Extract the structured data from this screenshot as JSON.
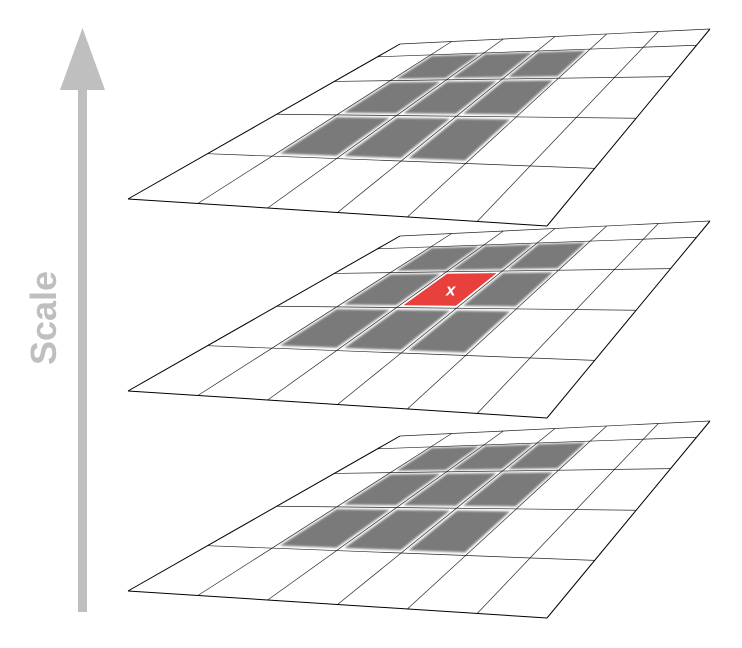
{
  "axis": {
    "label": "Scale",
    "color": "#bfbfbf"
  },
  "grid": {
    "columns": 6,
    "rows": 5,
    "line_color": "#000000",
    "background": "#ffffff"
  },
  "window": {
    "columns": [
      1,
      2,
      3
    ],
    "rows": [
      1,
      2,
      3
    ],
    "cell_color": "#7a7a7a"
  },
  "layers": [
    {
      "level": 3,
      "center": null
    },
    {
      "level": 2,
      "center": {
        "label": "x",
        "color": "#e8403d",
        "col": 2,
        "row": 2
      }
    },
    {
      "level": 1,
      "center": null
    }
  ]
}
